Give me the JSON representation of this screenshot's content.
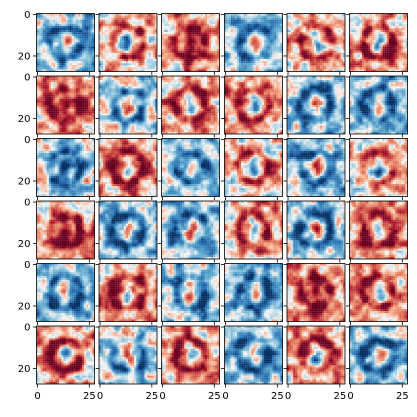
{
  "chart_data": {
    "type": "heatmap",
    "title": "",
    "xlabel": "",
    "ylabel": "",
    "grid": {
      "rows": 6,
      "cols": 6
    },
    "image_size": [
      28,
      28
    ],
    "colormap": "RdBu",
    "colors": {
      "negative": "#2166ac",
      "neutral": "#f7f7f7",
      "positive": "#b2182b"
    },
    "x_ticks": [
      0,
      25
    ],
    "x_tick_labels": [
      "0",
      "25"
    ],
    "y_ticks": [
      0,
      20
    ],
    "y_tick_labels": [
      "0",
      "20"
    ],
    "xlim": [
      -0.5,
      27.5
    ],
    "ylim": [
      27.5,
      -0.5
    ],
    "panels": [
      {
        "row": 0,
        "col": 0,
        "pattern": "blue-blotches"
      },
      {
        "row": 0,
        "col": 1,
        "pattern": "pale-red-loop"
      },
      {
        "row": 0,
        "col": 2,
        "pattern": "red-frame-blue-bars"
      },
      {
        "row": 0,
        "col": 3,
        "pattern": "blue-mixed"
      },
      {
        "row": 0,
        "col": 4,
        "pattern": "pale-red-vertical"
      },
      {
        "row": 0,
        "col": 5,
        "pattern": "red-mixed"
      },
      {
        "row": 1,
        "col": 0,
        "pattern": "red-top-blue-center"
      },
      {
        "row": 1,
        "col": 1,
        "pattern": "pale-blue-center"
      },
      {
        "row": 1,
        "col": 2,
        "pattern": "red-frame"
      },
      {
        "row": 1,
        "col": 3,
        "pattern": "red-loop"
      },
      {
        "row": 1,
        "col": 4,
        "pattern": "blue-noise"
      },
      {
        "row": 1,
        "col": 5,
        "pattern": "blue-noise"
      },
      {
        "row": 2,
        "col": 0,
        "pattern": "pale-blue-red-center"
      },
      {
        "row": 2,
        "col": 1,
        "pattern": "red-center"
      },
      {
        "row": 2,
        "col": 2,
        "pattern": "blue-swirl"
      },
      {
        "row": 2,
        "col": 3,
        "pattern": "pale-red-center"
      },
      {
        "row": 2,
        "col": 4,
        "pattern": "blue-blocks"
      },
      {
        "row": 2,
        "col": 5,
        "pattern": "pale-red-center"
      },
      {
        "row": 3,
        "col": 0,
        "pattern": "red-frame-blue-center"
      },
      {
        "row": 3,
        "col": 1,
        "pattern": "blue-fill"
      },
      {
        "row": 3,
        "col": 2,
        "pattern": "blue-mixed"
      },
      {
        "row": 3,
        "col": 3,
        "pattern": "red-frame"
      },
      {
        "row": 3,
        "col": 4,
        "pattern": "blue-cross"
      },
      {
        "row": 3,
        "col": 5,
        "pattern": "red-mixed"
      },
      {
        "row": 4,
        "col": 0,
        "pattern": "blue-top"
      },
      {
        "row": 4,
        "col": 1,
        "pattern": "red-loop"
      },
      {
        "row": 4,
        "col": 2,
        "pattern": "blue-mixed"
      },
      {
        "row": 4,
        "col": 3,
        "pattern": "blue-mixed"
      },
      {
        "row": 4,
        "col": 4,
        "pattern": "red-fill-blue-center"
      },
      {
        "row": 4,
        "col": 5,
        "pattern": "red-loop"
      },
      {
        "row": 5,
        "col": 0,
        "pattern": "red-vertical"
      },
      {
        "row": 5,
        "col": 1,
        "pattern": "pale-blue-center"
      },
      {
        "row": 5,
        "col": 2,
        "pattern": "red-blob"
      },
      {
        "row": 5,
        "col": 3,
        "pattern": "blue-right"
      },
      {
        "row": 5,
        "col": 4,
        "pattern": "red-noise"
      },
      {
        "row": 5,
        "col": 5,
        "pattern": "blue-mixed"
      }
    ]
  }
}
